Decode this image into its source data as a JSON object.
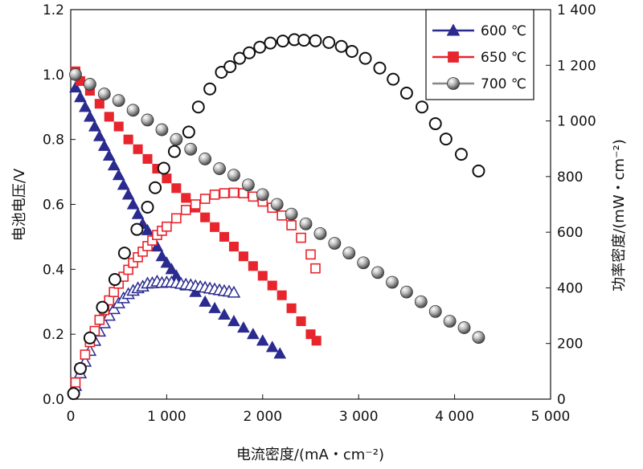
{
  "chart_data": {
    "type": "line",
    "xlabel": "电流密度/(mA・cm⁻²)",
    "ylabel_left": "电池电压/V",
    "ylabel_right": "功率密度/(mW・cm⁻²)",
    "xlim": [
      0,
      5000
    ],
    "ylim_left": [
      0,
      1.2
    ],
    "ylim_right": [
      0,
      1400
    ],
    "xticks": [
      0,
      1000,
      2000,
      3000,
      4000,
      5000
    ],
    "xtick_labels": [
      "0",
      "1 000",
      "2 000",
      "3 000",
      "4 000",
      "5 000"
    ],
    "yticks_left": [
      0.0,
      0.2,
      0.4,
      0.6,
      0.8,
      1.0,
      1.2
    ],
    "ytick_labels_left": [
      "0.0",
      "0.2",
      "0.4",
      "0.6",
      "0.8",
      "1.0",
      "1.2"
    ],
    "yticks_right": [
      0,
      200,
      400,
      600,
      800,
      1000,
      1200,
      1400
    ],
    "ytick_labels_right": [
      "0",
      "200",
      "400",
      "600",
      "800",
      "1 000",
      "1 200",
      "1 400"
    ],
    "grid": false,
    "legend_position": "top-right",
    "legend": [
      {
        "label": "600 ℃",
        "marker": "triangle",
        "color": "#2a2a8f"
      },
      {
        "label": "650 ℃",
        "marker": "square",
        "color": "#e8242c"
      },
      {
        "label": "700 ℃",
        "marker": "sphere",
        "color": "#888888"
      }
    ],
    "series": [
      {
        "name": "600 ℃",
        "kind": "voltage",
        "axis": "left",
        "marker": "triangle-filled",
        "color": "#2a2a8f",
        "x": [
          50,
          100,
          150,
          200,
          250,
          300,
          350,
          400,
          450,
          500,
          550,
          600,
          650,
          700,
          750,
          800,
          850,
          900,
          950,
          1000,
          1050,
          1100,
          1200,
          1300,
          1400,
          1500,
          1600,
          1700,
          1800,
          1900,
          2000,
          2100,
          2180
        ],
        "y": [
          0.96,
          0.93,
          0.9,
          0.87,
          0.84,
          0.81,
          0.78,
          0.75,
          0.72,
          0.69,
          0.66,
          0.63,
          0.6,
          0.57,
          0.54,
          0.52,
          0.49,
          0.47,
          0.44,
          0.42,
          0.4,
          0.38,
          0.35,
          0.33,
          0.3,
          0.28,
          0.26,
          0.24,
          0.22,
          0.2,
          0.18,
          0.16,
          0.14
        ]
      },
      {
        "name": "600 ℃",
        "kind": "power",
        "axis": "right",
        "marker": "triangle-open",
        "color": "#2a2a8f",
        "x": [
          50,
          100,
          150,
          200,
          250,
          300,
          350,
          400,
          450,
          500,
          550,
          600,
          650,
          700,
          750,
          800,
          850,
          900,
          950,
          1000,
          1050,
          1100,
          1150,
          1200,
          1250,
          1300,
          1350,
          1400,
          1450,
          1500,
          1550,
          1600,
          1650,
          1700
        ],
        "y": [
          48,
          93,
          135,
          174,
          210,
          243,
          273,
          300,
          324,
          345,
          363,
          378,
          390,
          399,
          405,
          416,
          417,
          423,
          418,
          420,
          420,
          418,
          415,
          412,
          410,
          407,
          404,
          401,
          398,
          395,
          392,
          389,
          387,
          383
        ]
      },
      {
        "name": "650 ℃",
        "kind": "voltage",
        "axis": "left",
        "marker": "square-filled",
        "color": "#e8242c",
        "x": [
          50,
          100,
          200,
          300,
          400,
          500,
          600,
          700,
          800,
          900,
          1000,
          1100,
          1200,
          1300,
          1400,
          1500,
          1600,
          1700,
          1800,
          1900,
          2000,
          2100,
          2200,
          2300,
          2400,
          2500,
          2560
        ],
        "y": [
          1.01,
          0.98,
          0.95,
          0.91,
          0.87,
          0.84,
          0.8,
          0.77,
          0.74,
          0.71,
          0.68,
          0.65,
          0.62,
          0.59,
          0.56,
          0.53,
          0.5,
          0.47,
          0.44,
          0.41,
          0.38,
          0.35,
          0.32,
          0.28,
          0.24,
          0.2,
          0.18
        ]
      },
      {
        "name": "650 ℃",
        "kind": "power",
        "axis": "right",
        "marker": "square-open",
        "color": "#e8242c",
        "x": [
          50,
          100,
          150,
          200,
          250,
          300,
          350,
          400,
          450,
          500,
          550,
          600,
          650,
          700,
          750,
          800,
          850,
          900,
          950,
          1000,
          1100,
          1200,
          1300,
          1400,
          1500,
          1600,
          1700,
          1800,
          1900,
          2000,
          2100,
          2200,
          2300,
          2400,
          2500,
          2550
        ],
        "y": [
          60,
          110,
          160,
          205,
          245,
          285,
          320,
          355,
          385,
          415,
          440,
          465,
          490,
          510,
          530,
          550,
          570,
          590,
          605,
          620,
          650,
          680,
          700,
          720,
          735,
          740,
          742,
          740,
          728,
          710,
          688,
          660,
          625,
          580,
          520,
          470
        ]
      },
      {
        "name": "700 ℃",
        "kind": "voltage",
        "axis": "left",
        "marker": "sphere",
        "color": "#888888",
        "x": [
          50,
          200,
          350,
          500,
          650,
          800,
          950,
          1100,
          1250,
          1400,
          1550,
          1700,
          1850,
          2000,
          2150,
          2300,
          2450,
          2600,
          2750,
          2900,
          3050,
          3200,
          3350,
          3500,
          3650,
          3800,
          3950,
          4100,
          4250
        ],
        "y": [
          1.0,
          0.97,
          0.94,
          0.92,
          0.89,
          0.86,
          0.83,
          0.8,
          0.77,
          0.74,
          0.71,
          0.69,
          0.66,
          0.63,
          0.6,
          0.57,
          0.54,
          0.51,
          0.48,
          0.45,
          0.42,
          0.39,
          0.36,
          0.33,
          0.3,
          0.27,
          0.24,
          0.22,
          0.19
        ]
      },
      {
        "name": "700 ℃",
        "kind": "power",
        "axis": "right",
        "marker": "circle-open",
        "color": "#111111",
        "x": [
          30,
          100,
          200,
          330,
          460,
          560,
          690,
          800,
          880,
          970,
          1080,
          1230,
          1330,
          1450,
          1570,
          1660,
          1760,
          1860,
          1970,
          2080,
          2210,
          2330,
          2430,
          2550,
          2690,
          2820,
          2930,
          3070,
          3220,
          3360,
          3500,
          3660,
          3800,
          3910,
          4070,
          4250
        ],
        "y": [
          20,
          110,
          220,
          330,
          430,
          525,
          610,
          690,
          760,
          830,
          890,
          960,
          1050,
          1115,
          1175,
          1195,
          1225,
          1245,
          1265,
          1280,
          1287,
          1292,
          1290,
          1288,
          1282,
          1268,
          1250,
          1225,
          1190,
          1150,
          1100,
          1050,
          990,
          935,
          880,
          820
        ]
      }
    ]
  }
}
